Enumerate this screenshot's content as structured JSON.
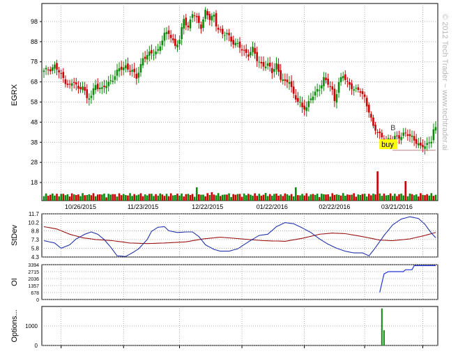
{
  "watermark": "© 2012 Tech Trader ~ www.techtrader.ai",
  "colors": {
    "up_candle": "#0b8a0b",
    "down_candle": "#cc0000",
    "stdev_line": "#2233aa",
    "stdev_ma_line": "#991111",
    "oi_line": "#2233dd",
    "options_bar": "#0b8a0b",
    "buy_label_bg": "#ffff00",
    "stop_line": "#c08080"
  },
  "chart_data": [
    {
      "panel": "price",
      "type": "candlestick",
      "ylabel": "EGRX",
      "ylim": [
        9,
        107
      ],
      "yticks": [
        "18",
        "28",
        "38",
        "48",
        "58",
        "68",
        "78",
        "88",
        "98"
      ],
      "xtick_labels": [
        "10/26/2015",
        "11/23/2015",
        "12/22/2015",
        "01/22/2016",
        "02/22/2016",
        "03/21/2016"
      ],
      "keypoints": [
        [
          0,
          73
        ],
        [
          5,
          76
        ],
        [
          8,
          71
        ],
        [
          12,
          66
        ],
        [
          14,
          68
        ],
        [
          16,
          64
        ],
        [
          18,
          67
        ],
        [
          20,
          59
        ],
        [
          22,
          61
        ],
        [
          24,
          67
        ],
        [
          27,
          64
        ],
        [
          32,
          70
        ],
        [
          35,
          74
        ],
        [
          38,
          76
        ],
        [
          41,
          73
        ],
        [
          43,
          70
        ],
        [
          46,
          80
        ],
        [
          50,
          82
        ],
        [
          53,
          84
        ],
        [
          56,
          91
        ],
        [
          58,
          93
        ],
        [
          61,
          86
        ],
        [
          63,
          88
        ],
        [
          65,
          100
        ],
        [
          67,
          95
        ],
        [
          69,
          102
        ],
        [
          71,
          99
        ],
        [
          73,
          96
        ],
        [
          75,
          103
        ],
        [
          77,
          99
        ],
        [
          79,
          101
        ],
        [
          80,
          97
        ],
        [
          83,
          91
        ],
        [
          85,
          92
        ],
        [
          87,
          89
        ],
        [
          89,
          87
        ],
        [
          92,
          84
        ],
        [
          95,
          82
        ],
        [
          97,
          84
        ],
        [
          99,
          79
        ],
        [
          101,
          77
        ],
        [
          104,
          76
        ],
        [
          106,
          73
        ],
        [
          108,
          77
        ],
        [
          110,
          70
        ],
        [
          112,
          67
        ],
        [
          114,
          69
        ],
        [
          116,
          62
        ],
        [
          118,
          58
        ],
        [
          120,
          55
        ],
        [
          122,
          56
        ],
        [
          124,
          60
        ],
        [
          126,
          62
        ],
        [
          128,
          65
        ],
        [
          130,
          70
        ],
        [
          132,
          67
        ],
        [
          134,
          63
        ],
        [
          135,
          59
        ],
        [
          137,
          68
        ],
        [
          139,
          71
        ],
        [
          141,
          67
        ],
        [
          143,
          66
        ],
        [
          145,
          64
        ],
        [
          147,
          63
        ],
        [
          149,
          60
        ],
        [
          150,
          57
        ],
        [
          151,
          54
        ],
        [
          153,
          45
        ],
        [
          156,
          42
        ],
        [
          157,
          41
        ],
        [
          159,
          39
        ],
        [
          161,
          38
        ],
        [
          163,
          41
        ],
        [
          166,
          41
        ],
        [
          169,
          42
        ],
        [
          171,
          41
        ],
        [
          173,
          38
        ],
        [
          175,
          35
        ],
        [
          177,
          37
        ],
        [
          179,
          38
        ],
        [
          180,
          39
        ],
        [
          181,
          44
        ]
      ],
      "annotations": [
        {
          "text": "B",
          "x": 161,
          "y": 44
        },
        {
          "text": "buy",
          "x": 161,
          "y": 36,
          "highlight": true
        }
      ],
      "stop_line": {
        "x_start": 162,
        "x_end": 182,
        "y": 34
      },
      "volume_spikes": [
        {
          "x": 71,
          "v": 95
        },
        {
          "x": 78,
          "v": 60
        },
        {
          "x": 117,
          "v": 95
        },
        {
          "x": 103,
          "v": 55
        },
        {
          "x": 155,
          "v": 210
        },
        {
          "x": 168,
          "v": 140
        }
      ]
    },
    {
      "panel": "stdev",
      "type": "line",
      "ylabel": "StDev",
      "ylim": [
        4.3,
        11.7
      ],
      "yticks": [
        "11.7",
        "10.2",
        "8.8",
        "7.3",
        "5.8",
        "4.3"
      ],
      "series_stdev": [
        [
          0,
          7.1
        ],
        [
          5,
          6.7
        ],
        [
          8,
          5.8
        ],
        [
          12,
          6.4
        ],
        [
          15,
          7.4
        ],
        [
          19,
          8.2
        ],
        [
          22,
          8.6
        ],
        [
          25,
          8.2
        ],
        [
          28,
          7.3
        ],
        [
          31,
          6.0
        ],
        [
          34,
          4.5
        ],
        [
          38,
          4.4
        ],
        [
          41,
          5.0
        ],
        [
          44,
          5.7
        ],
        [
          48,
          7.3
        ],
        [
          50,
          8.7
        ],
        [
          53,
          9.4
        ],
        [
          56,
          9.5
        ],
        [
          58,
          8.8
        ],
        [
          62,
          8.5
        ],
        [
          66,
          8.6
        ],
        [
          69,
          8.6
        ],
        [
          72,
          7.8
        ],
        [
          75,
          6.4
        ],
        [
          79,
          5.6
        ],
        [
          82,
          5.3
        ],
        [
          86,
          5.3
        ],
        [
          90,
          5.7
        ],
        [
          95,
          6.9
        ],
        [
          100,
          8.0
        ],
        [
          104,
          8.2
        ],
        [
          108,
          9.5
        ],
        [
          112,
          10.2
        ],
        [
          116,
          10.0
        ],
        [
          120,
          9.3
        ],
        [
          124,
          8.5
        ],
        [
          128,
          7.4
        ],
        [
          132,
          6.5
        ],
        [
          136,
          5.8
        ],
        [
          140,
          5.3
        ],
        [
          144,
          5.0
        ],
        [
          148,
          5.0
        ],
        [
          151,
          4.5
        ],
        [
          154,
          5.9
        ],
        [
          158,
          8.0
        ],
        [
          162,
          9.8
        ],
        [
          166,
          10.8
        ],
        [
          170,
          11.2
        ],
        [
          174,
          10.9
        ],
        [
          177,
          9.9
        ],
        [
          180,
          8.4
        ],
        [
          182,
          7.6
        ]
      ],
      "series_ma": [
        [
          0,
          9.5
        ],
        [
          6,
          9.1
        ],
        [
          12,
          8.2
        ],
        [
          18,
          7.6
        ],
        [
          24,
          7.3
        ],
        [
          32,
          7.1
        ],
        [
          40,
          6.7
        ],
        [
          48,
          6.6
        ],
        [
          56,
          6.7
        ],
        [
          66,
          6.9
        ],
        [
          74,
          7.4
        ],
        [
          82,
          7.7
        ],
        [
          92,
          7.4
        ],
        [
          102,
          7.1
        ],
        [
          112,
          7.0
        ],
        [
          120,
          7.5
        ],
        [
          128,
          8.2
        ],
        [
          134,
          8.4
        ],
        [
          140,
          8.3
        ],
        [
          148,
          7.8
        ],
        [
          156,
          7.2
        ],
        [
          162,
          7.1
        ],
        [
          170,
          7.4
        ],
        [
          176,
          7.9
        ],
        [
          182,
          8.5
        ]
      ]
    },
    {
      "panel": "open_interest",
      "type": "line",
      "ylabel": "OI",
      "ylim": [
        0,
        3394
      ],
      "yticks": [
        "3394",
        "2715",
        "2036",
        "1357",
        "678",
        "0"
      ],
      "series": [
        [
          0,
          0
        ],
        [
          154,
          0
        ],
        [
          156,
          700
        ],
        [
          158,
          2500
        ],
        [
          160,
          2715
        ],
        [
          167,
          2715
        ],
        [
          168,
          2900
        ],
        [
          171,
          2900
        ],
        [
          172,
          3300
        ],
        [
          182,
          3300
        ]
      ]
    },
    {
      "panel": "options_volume",
      "type": "bar",
      "ylabel": "Options...",
      "ylim": [
        0,
        2000
      ],
      "yticks": [
        "1000",
        "0"
      ],
      "bars": [
        {
          "x": 157,
          "value": 1900
        },
        {
          "x": 158,
          "value": 780
        }
      ]
    }
  ]
}
